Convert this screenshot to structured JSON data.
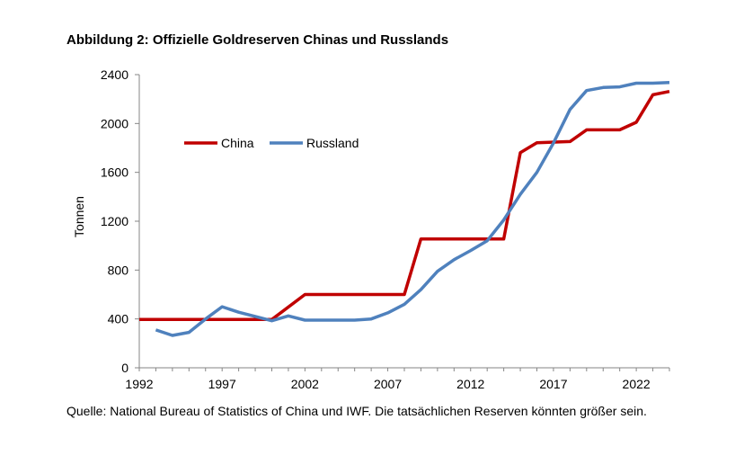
{
  "chart_data": {
    "type": "line",
    "title": "Abbildung 2: Offizielle Goldreserven Chinas und Russlands",
    "xlabel": "",
    "ylabel": "Tonnen",
    "xlim": [
      1992,
      2024
    ],
    "ylim": [
      0,
      2400
    ],
    "xticks": [
      1992,
      1997,
      2002,
      2007,
      2012,
      2017,
      2022
    ],
    "yticks": [
      0,
      400,
      800,
      1200,
      1600,
      2000,
      2400
    ],
    "grid": false,
    "legend_position": "upper-left",
    "series": [
      {
        "name": "China",
        "color": "#c00000",
        "x": [
          1992,
          2000,
          2002,
          2008,
          2009,
          2014,
          2015,
          2016,
          2018,
          2019,
          2021,
          2022,
          2023,
          2024
        ],
        "values": [
          395,
          395,
          600,
          600,
          1054,
          1054,
          1762,
          1842,
          1852,
          1948,
          1948,
          2010,
          2235,
          2262
        ]
      },
      {
        "name": "Russland",
        "color": "#4f81bd",
        "x": [
          1993,
          1994,
          1995,
          1996,
          1997,
          1998,
          1999,
          2000,
          2001,
          2002,
          2003,
          2004,
          2005,
          2006,
          2007,
          2008,
          2009,
          2010,
          2011,
          2012,
          2013,
          2014,
          2015,
          2016,
          2017,
          2018,
          2019,
          2020,
          2021,
          2022,
          2023,
          2024
        ],
        "values": [
          310,
          265,
          290,
          400,
          500,
          455,
          420,
          385,
          425,
          390,
          390,
          390,
          390,
          400,
          450,
          520,
          640,
          790,
          885,
          960,
          1040,
          1210,
          1420,
          1600,
          1840,
          2115,
          2270,
          2295,
          2300,
          2330,
          2330,
          2335
        ]
      }
    ]
  },
  "footer": {
    "source": "Quelle: National Bureau of Statistics of China und IWF. Die tatsächlichen Reserven könnten größer sein."
  }
}
